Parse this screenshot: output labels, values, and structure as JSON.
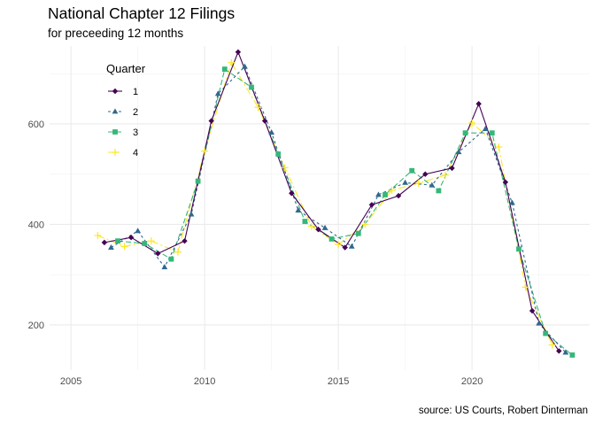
{
  "chart_data": {
    "type": "line",
    "title": "National Chapter 12 Filings",
    "subtitle": "for preceeding 12 months",
    "caption": "source: US Courts, Robert Dinterman",
    "xlabel": "",
    "ylabel": "",
    "xlim": [
      2004.2,
      2024.4
    ],
    "ylim": [
      110,
      755
    ],
    "x_ticks": [
      2005,
      2010,
      2015,
      2020
    ],
    "y_ticks": [
      200,
      400,
      600
    ],
    "x_tick_labels": [
      "2005",
      "2010",
      "2015",
      "2020"
    ],
    "y_tick_labels": [
      "200",
      "400",
      "600"
    ],
    "grid": true,
    "legend": {
      "title": "Quarter",
      "position": "top-left"
    },
    "series": [
      {
        "name": "1",
        "color": "#440154",
        "dash": "",
        "marker": "diamond",
        "points": [
          [
            2006.25,
            364
          ],
          [
            2007.25,
            374
          ],
          [
            2008.25,
            342
          ],
          [
            2009.25,
            367
          ],
          [
            2010.25,
            606
          ],
          [
            2011.25,
            743
          ],
          [
            2012.25,
            606
          ],
          [
            2013.25,
            462
          ],
          [
            2014.25,
            390
          ],
          [
            2015.25,
            354
          ],
          [
            2016.25,
            439
          ],
          [
            2017.25,
            457
          ],
          [
            2018.25,
            500
          ],
          [
            2019.25,
            512
          ],
          [
            2020.25,
            640
          ],
          [
            2021.25,
            484
          ],
          [
            2022.25,
            228
          ],
          [
            2023.25,
            148
          ]
        ]
      },
      {
        "name": "2",
        "color": "#31688e",
        "dash": "3,3",
        "marker": "triangle",
        "points": [
          [
            2006.5,
            354
          ],
          [
            2007.5,
            387
          ],
          [
            2008.5,
            315
          ],
          [
            2009.5,
            420
          ],
          [
            2010.5,
            660
          ],
          [
            2011.5,
            714
          ],
          [
            2012.5,
            583
          ],
          [
            2013.5,
            428
          ],
          [
            2014.5,
            393
          ],
          [
            2015.5,
            356
          ],
          [
            2016.5,
            459
          ],
          [
            2017.5,
            483
          ],
          [
            2018.5,
            478
          ],
          [
            2019.5,
            544
          ],
          [
            2020.5,
            590
          ],
          [
            2021.5,
            443
          ],
          [
            2022.5,
            203
          ],
          [
            2023.5,
            145
          ]
        ]
      },
      {
        "name": "3",
        "color": "#35b779",
        "dash": "6,3",
        "marker": "square",
        "points": [
          [
            2006.75,
            367
          ],
          [
            2007.75,
            362
          ],
          [
            2008.75,
            331
          ],
          [
            2009.75,
            486
          ],
          [
            2010.75,
            709
          ],
          [
            2011.75,
            673
          ],
          [
            2012.75,
            540
          ],
          [
            2013.75,
            406
          ],
          [
            2014.75,
            371
          ],
          [
            2015.75,
            382
          ],
          [
            2016.75,
            459
          ],
          [
            2017.75,
            507
          ],
          [
            2018.75,
            467
          ],
          [
            2019.75,
            582
          ],
          [
            2020.75,
            582
          ],
          [
            2021.75,
            351
          ],
          [
            2022.75,
            183
          ],
          [
            2023.75,
            140
          ]
        ]
      },
      {
        "name": "4",
        "color": "#fde725",
        "dash": "8,3,2,3",
        "marker": "plus",
        "points": [
          [
            2006.0,
            378
          ],
          [
            2007.0,
            356
          ],
          [
            2008.0,
            367
          ],
          [
            2009.0,
            345
          ],
          [
            2010.0,
            546
          ],
          [
            2011.0,
            722
          ],
          [
            2012.0,
            633
          ],
          [
            2013.0,
            513
          ],
          [
            2014.0,
            396
          ],
          [
            2015.0,
            360
          ],
          [
            2016.0,
            400
          ],
          [
            2017.0,
            468
          ],
          [
            2018.0,
            482
          ],
          [
            2019.0,
            498
          ],
          [
            2020.0,
            602
          ],
          [
            2021.0,
            554
          ],
          [
            2022.0,
            275
          ],
          [
            2023.0,
            160
          ]
        ]
      }
    ]
  }
}
